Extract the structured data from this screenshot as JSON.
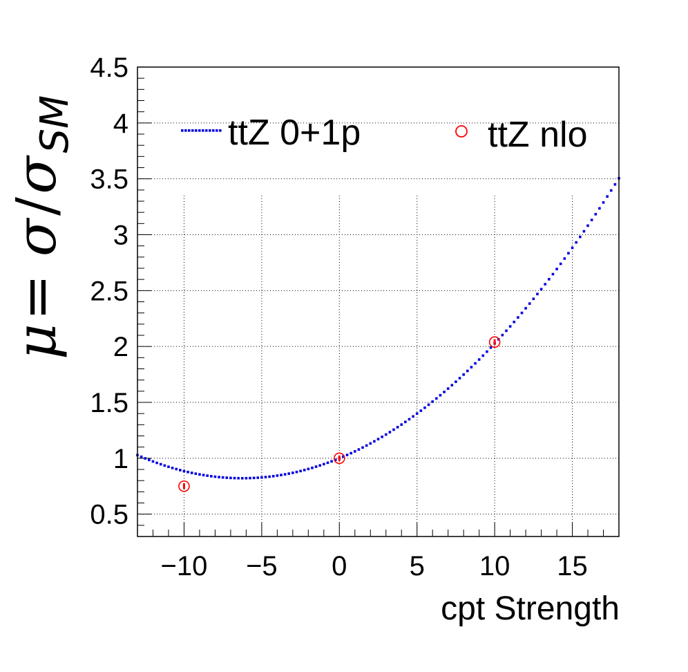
{
  "chart_data": {
    "type": "scatter",
    "xlabel": "cpt Strength",
    "ylabel": {
      "mu": "μ",
      "equals": " = ",
      "sigma": "σ",
      "slash": "/",
      "sigma_sm": "σ",
      "sub": "SM"
    },
    "xlim": [
      -13,
      18
    ],
    "ylim": [
      0.3,
      4.5
    ],
    "x_ticks": [
      -10,
      -5,
      0,
      5,
      10,
      15
    ],
    "x_tick_labels": [
      "−10",
      "−5",
      "0",
      "5",
      "10",
      "15"
    ],
    "y_ticks": [
      0.5,
      1,
      1.5,
      2,
      2.5,
      3,
      3.5,
      4,
      4.5
    ],
    "y_tick_labels": [
      "0.5",
      "1",
      "1.5",
      "2",
      "2.5",
      "3",
      "3.5",
      "4",
      "4.5"
    ],
    "grid": true,
    "legend_placement": "top",
    "series": [
      {
        "name": "ttZ 0+1p",
        "style": "dotted-line",
        "color": "#0000e0",
        "x_range": [
          -13,
          18
        ],
        "quadratic": {
          "a": 0.00456,
          "b": 0.0571,
          "c": 1.0
        }
      },
      {
        "name": "ttZ nlo",
        "style": "open-circle",
        "color": "#ff0000",
        "x": [
          -10,
          0,
          10
        ],
        "y": [
          0.75,
          1.0,
          2.04
        ]
      }
    ]
  }
}
